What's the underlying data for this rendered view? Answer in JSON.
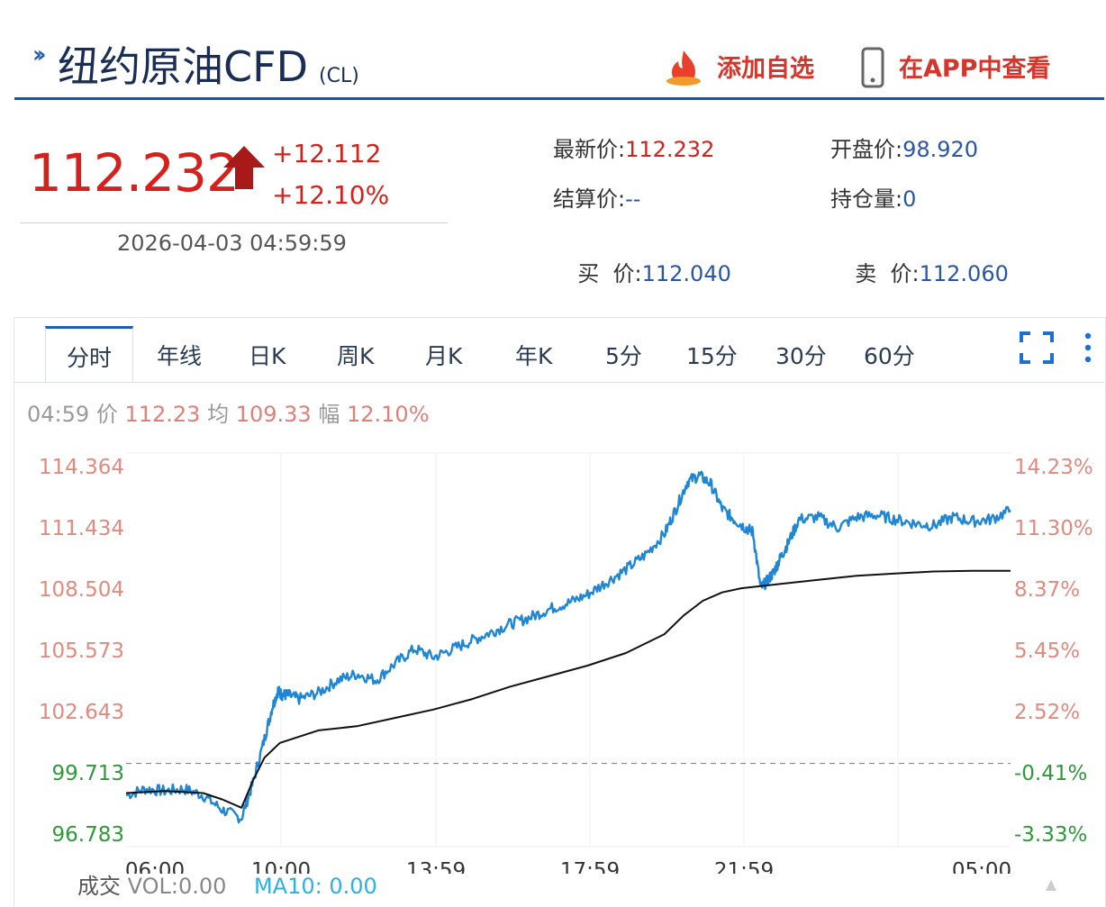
{
  "header": {
    "title": "纽约原油CFD",
    "code": "(CL)",
    "add_watchlist": "添加自选",
    "view_in_app": "在APP中查看"
  },
  "quote": {
    "last": "112.232",
    "change": "+12.112",
    "change_pct": "+12.10%",
    "time": "2026-04-03 04:59:59",
    "fields": {
      "latest_label": "最新价:",
      "latest_value": "112.232",
      "open_label": "开盘价:",
      "open_value": "98.920",
      "settle_label": "结算价:",
      "settle_value": "--",
      "oi_label": "持仓量:",
      "oi_value": "0",
      "bid_label": "买  价:",
      "bid_value": "112.040",
      "ask_label": "卖  价:",
      "ask_value": "112.060"
    }
  },
  "tabs": [
    "分时",
    "年线",
    "日K",
    "周K",
    "月K",
    "年K",
    "5分",
    "15分",
    "30分",
    "60分"
  ],
  "active_tab": "分时",
  "info": {
    "time": "04:59",
    "price_label": "价",
    "price": "112.23",
    "avg_label": "均",
    "avg": "109.33",
    "amp_label": "幅",
    "amp": "12.10%"
  },
  "volume": {
    "label": "成交",
    "vol_label": "VOL:",
    "vol": "0.00",
    "ma_label": "MA10:",
    "ma": "0.00"
  },
  "colors": {
    "up": "#d6201c",
    "down": "#2e9a3a",
    "price_line": "#1f86d6",
    "avg_line": "#111111",
    "brand": "#1a2e55"
  },
  "chart_data": {
    "type": "line",
    "title": "",
    "x_ticks": [
      "06:00",
      "10:00",
      "13:59",
      "17:59",
      "21:59",
      "05:00"
    ],
    "y_ticks": [
      "114.364",
      "111.434",
      "108.504",
      "105.573",
      "102.643",
      "99.713",
      "96.783"
    ],
    "y_right_ticks": [
      "14.23%",
      "11.30%",
      "8.37%",
      "5.45%",
      "2.52%",
      "-0.41%",
      "-3.33%"
    ],
    "ylim": [
      96.783,
      114.364
    ],
    "reference_price": 100.12,
    "x_range": [
      0,
      23
    ],
    "series": [
      {
        "role": "price",
        "x": [
          0,
          0.5,
          1,
          1.5,
          2,
          2.5,
          3,
          3.3,
          3.6,
          3.8,
          3.95,
          4.05,
          4.2,
          4.5,
          5,
          5.5,
          6,
          6.5,
          7,
          7.5,
          8,
          8.5,
          9,
          9.5,
          10,
          10.5,
          11,
          11.5,
          12,
          12.5,
          13,
          13.5,
          14,
          14.3,
          14.6,
          14.9,
          15.2,
          15.5,
          15.8,
          16.1,
          16.3,
          16.5,
          16.7,
          16.85,
          17,
          17.2,
          17.5,
          18,
          18.5,
          19,
          19.5,
          20,
          20.5,
          21,
          21.5,
          22,
          22.5,
          23
        ],
        "y": [
          98.6,
          98.9,
          98.8,
          98.9,
          98.6,
          97.9,
          97.5,
          99.2,
          101.3,
          102.8,
          103.6,
          103.4,
          103.4,
          103.2,
          103.5,
          104.1,
          104.4,
          104.1,
          104.9,
          105.6,
          105.2,
          105.6,
          106.0,
          106.4,
          106.8,
          107.1,
          107.5,
          107.8,
          108.2,
          108.8,
          109.4,
          110.1,
          111.1,
          112.3,
          113.6,
          113.9,
          113.5,
          112.3,
          111.8,
          111.4,
          111.2,
          108.5,
          108.9,
          109.3,
          109.9,
          110.6,
          111.8,
          111.9,
          111.4,
          111.9,
          112.0,
          111.8,
          111.6,
          111.5,
          111.9,
          111.7,
          111.8,
          112.23
        ]
      },
      {
        "role": "average",
        "x": [
          0,
          1,
          2,
          2.5,
          3,
          3.3,
          3.6,
          4,
          5,
          6,
          7,
          8,
          9,
          10,
          11,
          12,
          13,
          14,
          14.5,
          15,
          15.5,
          16,
          17,
          18,
          19,
          20,
          21,
          22,
          23
        ],
        "y": [
          98.7,
          98.8,
          98.7,
          98.4,
          98.0,
          99.3,
          100.4,
          101.1,
          101.7,
          101.9,
          102.3,
          102.7,
          103.2,
          103.8,
          104.3,
          104.8,
          105.4,
          106.3,
          107.2,
          107.9,
          108.3,
          108.5,
          108.7,
          108.9,
          109.1,
          109.2,
          109.3,
          109.33,
          109.33
        ]
      }
    ]
  }
}
